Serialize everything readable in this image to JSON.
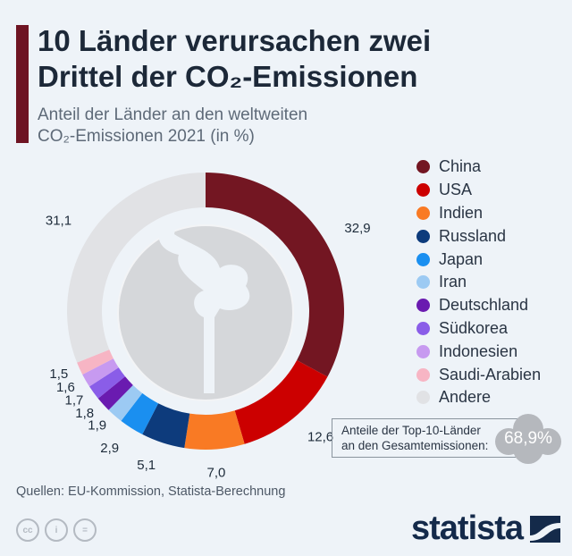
{
  "title_line1": "10 Länder verursachen zwei",
  "title_line2": "Drittel der CO₂-Emissionen",
  "subtitle_line1": "Anteil der Länder an den weltweiten",
  "subtitle_line2": "CO₂-Emissionen 2021 (in %)",
  "note_line1": "Anteile der Top-10-Länder",
  "note_line2": "an den Gesamtemissionen:",
  "note_value": "68,9%",
  "source": "Quellen: EU-Kommission, Statista-Berechnung",
  "logo": "statista",
  "license_icons": [
    "cc-icon",
    "attribution-icon",
    "no-derivatives-icon"
  ],
  "chart_data": {
    "type": "pie",
    "variant": "donut",
    "categories": [
      "China",
      "USA",
      "Indien",
      "Russland",
      "Japan",
      "Iran",
      "Deutschland",
      "Südkorea",
      "Indonesien",
      "Saudi-Arabien",
      "Andere"
    ],
    "values": [
      32.9,
      12.6,
      7.0,
      5.1,
      2.9,
      1.9,
      1.8,
      1.7,
      1.6,
      1.5,
      31.1
    ],
    "labels": [
      "32,9",
      "12,6",
      "7,0",
      "5,1",
      "2,9",
      "1,9",
      "1,8",
      "1,7",
      "1,6",
      "1,5",
      "31,1"
    ],
    "colors": [
      "#731622",
      "#cc0000",
      "#f97a24",
      "#0d3b7c",
      "#1a8ff0",
      "#9ccaf3",
      "#6a1bb0",
      "#8a5de8",
      "#c79af0",
      "#f7b5c4",
      "#e1e2e5"
    ],
    "legend_position": "right",
    "unit": "%"
  }
}
